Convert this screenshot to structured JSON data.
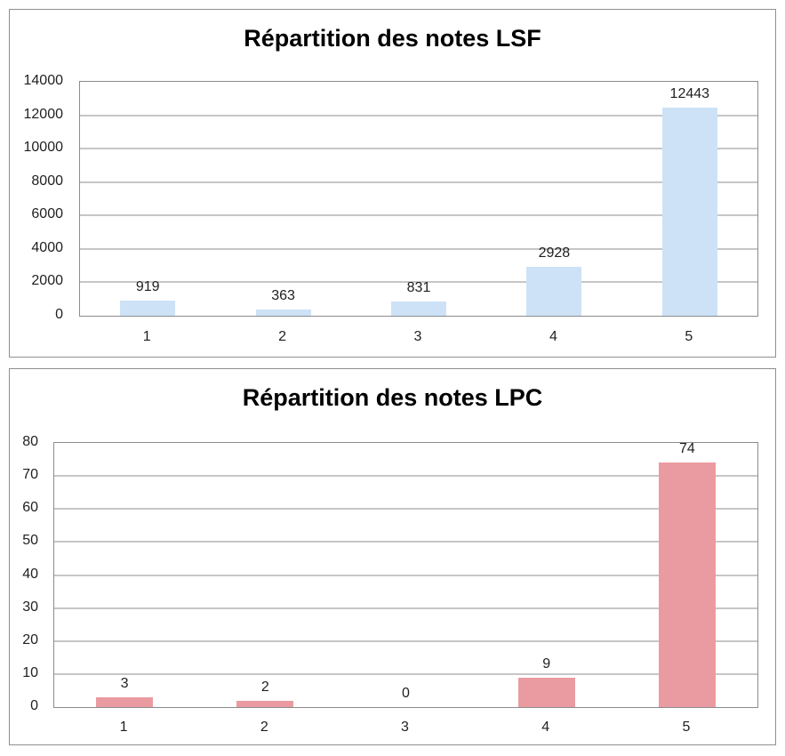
{
  "chart_data": [
    {
      "type": "bar",
      "title": "Répartition des notes LSF",
      "categories": [
        "1",
        "2",
        "3",
        "4",
        "5"
      ],
      "values": [
        919,
        363,
        831,
        2928,
        12443
      ],
      "data_labels": [
        "919",
        "363",
        "831",
        "2928",
        "12443"
      ],
      "ylim": [
        0,
        14000
      ],
      "ytick_step": 2000,
      "ytick_labels": [
        "0",
        "2000",
        "4000",
        "6000",
        "8000",
        "10000",
        "12000",
        "14000"
      ],
      "grid": true,
      "legend": "none",
      "bar_color": "#cde2f6",
      "xlabel": "",
      "ylabel": ""
    },
    {
      "type": "bar",
      "title": "Répartition des notes LPC",
      "categories": [
        "1",
        "2",
        "3",
        "4",
        "5"
      ],
      "values": [
        3,
        2,
        0,
        9,
        74
      ],
      "data_labels": [
        "3",
        "2",
        "0",
        "9",
        "74"
      ],
      "ylim": [
        0,
        80
      ],
      "ytick_step": 10,
      "ytick_labels": [
        "0",
        "10",
        "20",
        "30",
        "40",
        "50",
        "60",
        "70",
        "80"
      ],
      "grid": true,
      "legend": "none",
      "bar_color": "#ea9ba1",
      "xlabel": "",
      "ylabel": ""
    }
  ],
  "colors": {
    "background": "#ffffff",
    "panel_border": "#8f8f8f",
    "gridline": "#8c8c8c",
    "text": "#1f1f1f",
    "bar_lsf": "#cde2f6",
    "bar_lpc": "#ea9ba1"
  }
}
